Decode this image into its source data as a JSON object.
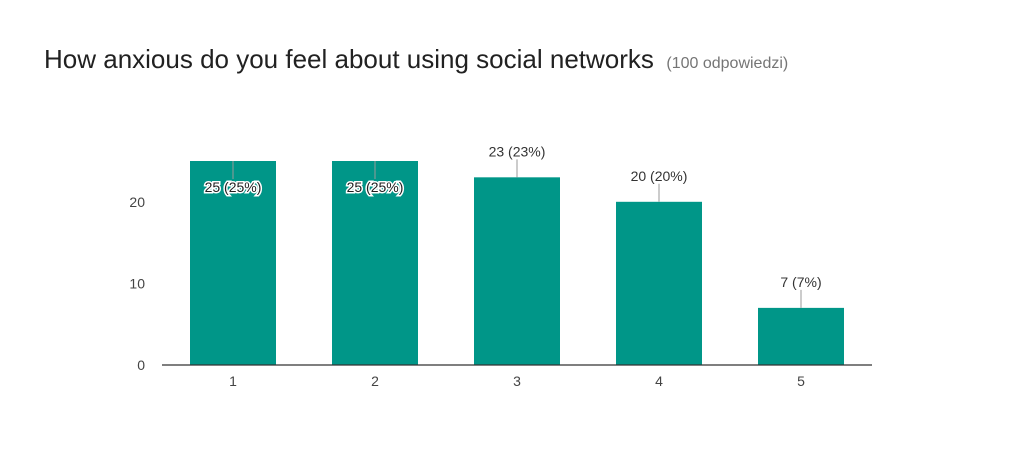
{
  "header": {
    "title": "How anxious do you feel about using social networks",
    "response_count": "(100 odpowiedzi)"
  },
  "colors": {
    "bar": "#009688",
    "axis": "#333333",
    "tick_text": "#444444",
    "label_text": "#333333",
    "leader_line": "#999999"
  },
  "chart_data": {
    "type": "bar",
    "title": "How anxious do you feel about using social networks",
    "xlabel": "",
    "ylabel": "",
    "categories": [
      "1",
      "2",
      "3",
      "4",
      "5"
    ],
    "values": [
      25,
      25,
      23,
      20,
      7
    ],
    "data_labels": [
      "25 (25%)",
      "25 (25%)",
      "23 (23%)",
      "20 (20%)",
      "7 (7%)"
    ],
    "yticks": [
      0,
      10,
      20
    ],
    "ylim": [
      0,
      25
    ],
    "grid": false,
    "legend": "none"
  }
}
